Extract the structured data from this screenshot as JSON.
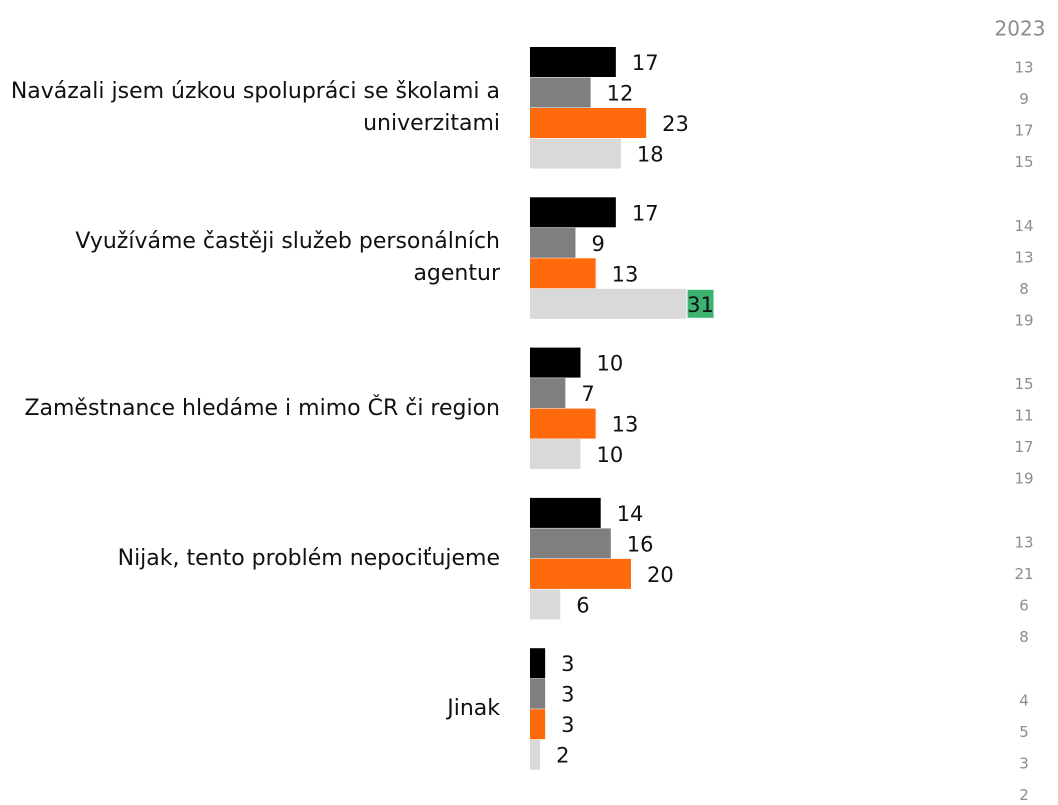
{
  "chart_data": {
    "type": "bar",
    "orientation": "horizontal",
    "categories": [
      "Navázali jsem úzkou spolupráci se školami a univerzitami",
      "Využíváme častěji služeb personálních agentur",
      "Zaměstnance hledáme i mimo ČR či region",
      "Nijak, tento problém nepociťujeme",
      "Jinak"
    ],
    "series": [
      {
        "color": "#000000",
        "values": [
          17,
          17,
          10,
          14,
          3
        ]
      },
      {
        "color": "#7f7f7f",
        "values": [
          12,
          9,
          7,
          16,
          3
        ]
      },
      {
        "color": "#ff6a0c",
        "values": [
          23,
          13,
          13,
          20,
          3
        ]
      },
      {
        "color": "#d9d9d9",
        "values": [
          18,
          31,
          10,
          6,
          2
        ]
      }
    ],
    "highlight": [
      {
        "series": 3,
        "index": 1,
        "color": "#3cb371"
      }
    ],
    "previous": {
      "title": "2023",
      "values": [
        [
          13,
          9,
          17,
          15
        ],
        [
          14,
          13,
          8,
          19
        ],
        [
          15,
          11,
          17,
          19
        ],
        [
          13,
          21,
          6,
          8
        ],
        [
          4,
          5,
          3,
          2
        ]
      ]
    }
  }
}
